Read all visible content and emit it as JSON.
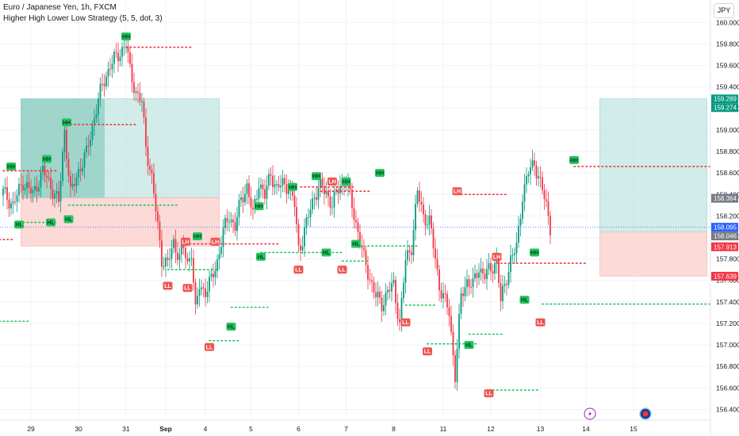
{
  "header": {
    "symbol_line": "Euro / Japanese Yen, 1h, FXCM",
    "indicator_line": "Higher High Lower Low Strategy (5, 5, dot, 3)"
  },
  "currency_label": "JPY",
  "colors": {
    "up": "#089981",
    "down": "#f23645",
    "hh_badge": "#22c55e",
    "ll_badge": "#ef5350",
    "high_line": "#f23645",
    "low_line": "#22c55e",
    "target_zone": "#b2dfdb",
    "stop_zone": "#fbd3d0",
    "target_zone_dark": "#7fc7b9",
    "price_line": "#2962ff"
  },
  "chart_data": {
    "type": "candlestick",
    "x_axis_labels": [
      "29",
      "30",
      "31",
      "Sep",
      "4",
      "5",
      "6",
      "7",
      "8",
      "11",
      "12",
      "13",
      "14",
      "15"
    ],
    "x_axis_label_positions_index": [
      14,
      38,
      62,
      82,
      102,
      125,
      149,
      173,
      197,
      222,
      246,
      271,
      294,
      318
    ],
    "ylim": [
      156.3,
      160.15
    ],
    "y_ticks": [
      156.4,
      156.6,
      156.8,
      157.0,
      157.2,
      157.4,
      157.6,
      157.8,
      158.0,
      158.2,
      158.4,
      158.6,
      158.8,
      159.0,
      159.2,
      159.4,
      159.6,
      159.8,
      160.0
    ],
    "y_tick_labels": [
      "156.400",
      "156.600",
      "156.800",
      "157.000",
      "157.200",
      "157.400",
      "157.600",
      "157.800",
      "158.000",
      "158.200",
      "158.400",
      "158.600",
      "158.800",
      "159.000",
      "159.200",
      "159.400",
      "159.600",
      "159.800",
      "160.000"
    ],
    "close_path": [
      [
        0,
        158.42
      ],
      [
        5,
        158.3
      ],
      [
        10,
        158.52
      ],
      [
        15,
        158.4
      ],
      [
        20,
        158.62
      ],
      [
        24,
        158.48
      ],
      [
        28,
        158.32
      ],
      [
        31,
        159.0
      ],
      [
        34,
        158.4
      ],
      [
        38,
        158.62
      ],
      [
        42,
        158.78
      ],
      [
        46,
        159.12
      ],
      [
        50,
        159.42
      ],
      [
        54,
        159.6
      ],
      [
        58,
        159.7
      ],
      [
        62,
        159.8
      ],
      [
        64,
        159.55
      ],
      [
        67,
        159.35
      ],
      [
        70,
        159.25
      ],
      [
        72,
        158.85
      ],
      [
        75,
        158.55
      ],
      [
        78,
        158.1
      ],
      [
        80,
        157.8
      ],
      [
        83,
        157.75
      ],
      [
        86,
        157.95
      ],
      [
        89,
        157.82
      ],
      [
        91,
        157.9
      ],
      [
        93,
        157.75
      ],
      [
        95,
        157.88
      ],
      [
        97,
        157.3
      ],
      [
        99,
        157.55
      ],
      [
        102,
        157.5
      ],
      [
        105,
        157.6
      ],
      [
        108,
        157.78
      ],
      [
        111,
        158.05
      ],
      [
        114,
        158.2
      ],
      [
        117,
        158.1
      ],
      [
        120,
        158.35
      ],
      [
        123,
        158.48
      ],
      [
        126,
        158.2
      ],
      [
        129,
        158.52
      ],
      [
        132,
        158.38
      ],
      [
        135,
        158.6
      ],
      [
        138,
        158.45
      ],
      [
        141,
        158.5
      ],
      [
        144,
        158.48
      ],
      [
        147,
        158.3
      ],
      [
        149,
        157.9
      ],
      [
        151,
        157.98
      ],
      [
        154,
        158.2
      ],
      [
        157,
        158.4
      ],
      [
        160,
        158.47
      ],
      [
        163,
        158.42
      ],
      [
        166,
        158.3
      ],
      [
        170,
        158.5
      ],
      [
        173,
        158.52
      ],
      [
        176,
        158.3
      ],
      [
        179,
        158.05
      ],
      [
        182,
        157.8
      ],
      [
        185,
        157.62
      ],
      [
        188,
        157.45
      ],
      [
        191,
        157.38
      ],
      [
        194,
        157.5
      ],
      [
        197,
        157.55
      ],
      [
        200,
        157.2
      ],
      [
        203,
        157.78
      ],
      [
        206,
        157.92
      ],
      [
        209,
        158.42
      ],
      [
        212,
        158.2
      ],
      [
        215,
        158.15
      ],
      [
        218,
        157.8
      ],
      [
        220,
        157.55
      ],
      [
        222,
        157.45
      ],
      [
        225,
        157.3
      ],
      [
        228,
        156.72
      ],
      [
        231,
        157.45
      ],
      [
        234,
        157.6
      ],
      [
        237,
        157.55
      ],
      [
        240,
        157.72
      ],
      [
        243,
        157.65
      ],
      [
        246,
        157.7
      ],
      [
        249,
        157.8
      ],
      [
        251,
        157.4
      ],
      [
        253,
        157.55
      ],
      [
        256,
        157.8
      ],
      [
        259,
        157.9
      ],
      [
        262,
        158.4
      ],
      [
        265,
        158.6
      ],
      [
        268,
        158.7
      ],
      [
        271,
        158.5
      ],
      [
        274,
        158.3
      ],
      [
        276,
        158.1
      ]
    ],
    "pivots": [
      {
        "label": "HH",
        "kind": "high",
        "x": 4,
        "y": 158.66
      },
      {
        "label": "HH",
        "kind": "high",
        "x": 22,
        "y": 158.73
      },
      {
        "label": "HH",
        "kind": "high",
        "x": 32,
        "y": 159.07
      },
      {
        "label": "HH",
        "kind": "high",
        "x": 62,
        "y": 159.87
      },
      {
        "label": "LH",
        "kind": "high",
        "x": 92,
        "y": 157.96
      },
      {
        "label": "HH",
        "kind": "high",
        "x": 98,
        "y": 158.01
      },
      {
        "label": "LH",
        "kind": "high",
        "x": 107,
        "y": 157.96
      },
      {
        "label": "HH",
        "kind": "high",
        "x": 129,
        "y": 158.29
      },
      {
        "label": "HH",
        "kind": "high",
        "x": 146,
        "y": 158.47
      },
      {
        "label": "HH",
        "kind": "high",
        "x": 158,
        "y": 158.57
      },
      {
        "label": "LH",
        "kind": "high",
        "x": 166,
        "y": 158.52
      },
      {
        "label": "HH",
        "kind": "high",
        "x": 173,
        "y": 158.52
      },
      {
        "label": "HH",
        "kind": "high",
        "x": 190,
        "y": 158.6
      },
      {
        "label": "LH",
        "kind": "high",
        "x": 229,
        "y": 158.43
      },
      {
        "label": "LH",
        "kind": "high",
        "x": 249,
        "y": 157.82
      },
      {
        "label": "HH",
        "kind": "high",
        "x": 268,
        "y": 157.86
      },
      {
        "label": "HH",
        "kind": "high",
        "x": 288,
        "y": 158.72
      },
      {
        "label": "HL",
        "kind": "low",
        "x": 8,
        "y": 158.12
      },
      {
        "label": "HL",
        "kind": "low",
        "x": 24,
        "y": 158.14
      },
      {
        "label": "HL",
        "kind": "low",
        "x": 33,
        "y": 158.17
      },
      {
        "label": "LL",
        "kind": "low",
        "x": 83,
        "y": 157.55
      },
      {
        "label": "LL",
        "kind": "low",
        "x": 93,
        "y": 157.53
      },
      {
        "label": "HL",
        "kind": "low",
        "x": 115,
        "y": 157.17
      },
      {
        "label": "LL",
        "kind": "low",
        "x": 104,
        "y": 156.98
      },
      {
        "label": "HL",
        "kind": "low",
        "x": 130,
        "y": 157.82
      },
      {
        "label": "LL",
        "kind": "low",
        "x": 149,
        "y": 157.7
      },
      {
        "label": "HL",
        "kind": "low",
        "x": 163,
        "y": 157.86
      },
      {
        "label": "LL",
        "kind": "low",
        "x": 171,
        "y": 157.7
      },
      {
        "label": "HL",
        "kind": "low",
        "x": 178,
        "y": 157.94
      },
      {
        "label": "LL",
        "kind": "low",
        "x": 203,
        "y": 157.21
      },
      {
        "label": "LL",
        "kind": "low",
        "x": 214,
        "y": 156.94
      },
      {
        "label": "HL",
        "kind": "low",
        "x": 235,
        "y": 157.0
      },
      {
        "label": "LL",
        "kind": "low",
        "x": 245,
        "y": 156.55
      },
      {
        "label": "HL",
        "kind": "low",
        "x": 263,
        "y": 157.42
      },
      {
        "label": "LL",
        "kind": "low",
        "x": 271,
        "y": 157.21
      }
    ],
    "levels": [
      {
        "kind": "high",
        "y": 158.62,
        "x1": 0,
        "x2": 28
      },
      {
        "kind": "high",
        "y": 159.05,
        "x1": 32,
        "x2": 67
      },
      {
        "kind": "high",
        "y": 159.77,
        "x1": 62,
        "x2": 96
      },
      {
        "kind": "high",
        "y": 157.94,
        "x1": 92,
        "x2": 140
      },
      {
        "kind": "high",
        "y": 158.47,
        "x1": 150,
        "x2": 178
      },
      {
        "kind": "high",
        "y": 158.43,
        "x1": 160,
        "x2": 186
      },
      {
        "kind": "high",
        "y": 158.4,
        "x1": 229,
        "x2": 255
      },
      {
        "kind": "high",
        "y": 157.76,
        "x1": 249,
        "x2": 294
      },
      {
        "kind": "high",
        "y": 158.66,
        "x1": 288,
        "x2": 358
      },
      {
        "kind": "high",
        "y": 157.98,
        "x1": -4,
        "x2": 6
      },
      {
        "kind": "low",
        "y": 158.14,
        "x1": 8,
        "x2": 28
      },
      {
        "kind": "low",
        "y": 158.3,
        "x1": 33,
        "x2": 89
      },
      {
        "kind": "low",
        "y": 157.7,
        "x1": 83,
        "x2": 108
      },
      {
        "kind": "low",
        "y": 157.35,
        "x1": 115,
        "x2": 135
      },
      {
        "kind": "low",
        "y": 157.04,
        "x1": 104,
        "x2": 120
      },
      {
        "kind": "low",
        "y": 157.86,
        "x1": 130,
        "x2": 172
      },
      {
        "kind": "low",
        "y": 157.78,
        "x1": 171,
        "x2": 184
      },
      {
        "kind": "low",
        "y": 157.92,
        "x1": 178,
        "x2": 209
      },
      {
        "kind": "low",
        "y": 157.37,
        "x1": 203,
        "x2": 219
      },
      {
        "kind": "low",
        "y": 157.01,
        "x1": 214,
        "x2": 240
      },
      {
        "kind": "low",
        "y": 157.1,
        "x1": 235,
        "x2": 252
      },
      {
        "kind": "low",
        "y": 156.58,
        "x1": 245,
        "x2": 270
      },
      {
        "kind": "low",
        "y": 157.38,
        "x1": 272,
        "x2": 360
      },
      {
        "kind": "low",
        "y": 157.22,
        "x1": -4,
        "x2": 14
      }
    ],
    "zones": [
      {
        "kind": "target",
        "x1": 9,
        "x2": 109,
        "y_top": 159.29,
        "y_bottom": 158.37
      },
      {
        "kind": "stop",
        "x1": 9,
        "x2": 109,
        "y_top": 158.37,
        "y_bottom": 157.92
      },
      {
        "kind": "target_dark",
        "x1": 9,
        "x2": 51,
        "y_top": 159.29,
        "y_bottom": 158.37
      },
      {
        "kind": "target",
        "x1": 301,
        "x2": 355,
        "y_top": 159.29,
        "y_bottom": 158.05
      },
      {
        "kind": "stop",
        "x1": 301,
        "x2": 355,
        "y_top": 158.05,
        "y_bottom": 157.64
      }
    ],
    "last_price": 158.095,
    "price_tags": [
      {
        "text": "159.289",
        "y": 159.289,
        "color": "#089981"
      },
      {
        "text": "159.274",
        "y": 159.274,
        "color": "#089981"
      },
      {
        "text": "158.364",
        "y": 158.364,
        "color": "#787b86"
      },
      {
        "text": "158.095",
        "y": 158.095,
        "color": "#2962ff"
      },
      {
        "text": "158.046",
        "y": 158.046,
        "color": "#787b86"
      },
      {
        "text": "157.913",
        "y": 157.913,
        "color": "#f23645"
      },
      {
        "text": "157.639",
        "y": 157.639,
        "color": "#f23645"
      }
    ],
    "event_icons": [
      {
        "kind": "lightning",
        "x": 296
      },
      {
        "kind": "flag",
        "x": 324
      }
    ]
  }
}
